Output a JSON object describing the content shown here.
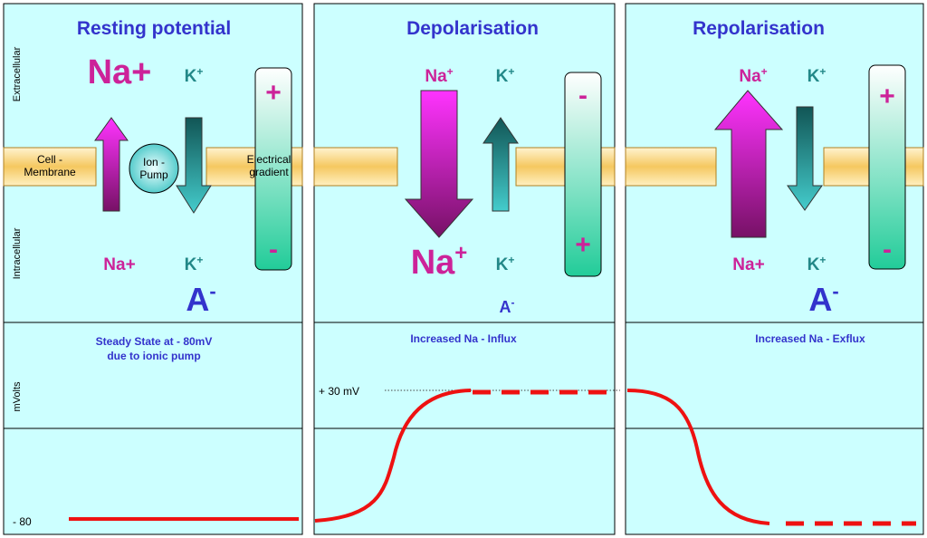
{
  "side_labels": {
    "extracellular": "Extracellular",
    "intracellular": "Intracellular",
    "mvolts": "mVolts",
    "minus80": "- 80",
    "plus30": "+ 30 mV"
  },
  "panels": [
    {
      "title": "Resting potential",
      "na_top": "Na+",
      "k_top": {
        "base": "K",
        "sup": "+"
      },
      "gradient_top": "+",
      "gradient_bottom": "-",
      "membrane_label": [
        "Cell -",
        "Membrane"
      ],
      "pump_label": [
        "Ion -",
        "Pump"
      ],
      "gradient_label": [
        "Electrical",
        "gradient"
      ],
      "na_bottom": "Na+",
      "k_bottom": {
        "base": "K",
        "sup": "+"
      },
      "anion": {
        "base": "A",
        "sup": "-"
      },
      "caption": [
        "Steady State at - 80mV",
        "due to ionic pump"
      ]
    },
    {
      "title": "Depolarisation",
      "na_top": {
        "base": "Na",
        "sup": "+"
      },
      "k_top": {
        "base": "K",
        "sup": "+"
      },
      "gradient_top": "-",
      "gradient_bottom": "+",
      "na_bottom": {
        "base": "Na",
        "sup": "+"
      },
      "k_bottom": {
        "base": "K",
        "sup": "+"
      },
      "anion": {
        "base": "A",
        "sup": "-"
      },
      "caption": "Increased Na - Influx"
    },
    {
      "title": "Repolarisation",
      "na_top": {
        "base": "Na",
        "sup": "+"
      },
      "k_top": {
        "base": "K",
        "sup": "+"
      },
      "gradient_top": "+",
      "gradient_bottom": "-",
      "na_bottom": "Na+",
      "k_bottom": {
        "base": "K",
        "sup": "+"
      },
      "anion": {
        "base": "A",
        "sup": "-"
      },
      "caption": "Increased Na - Exflux"
    }
  ]
}
